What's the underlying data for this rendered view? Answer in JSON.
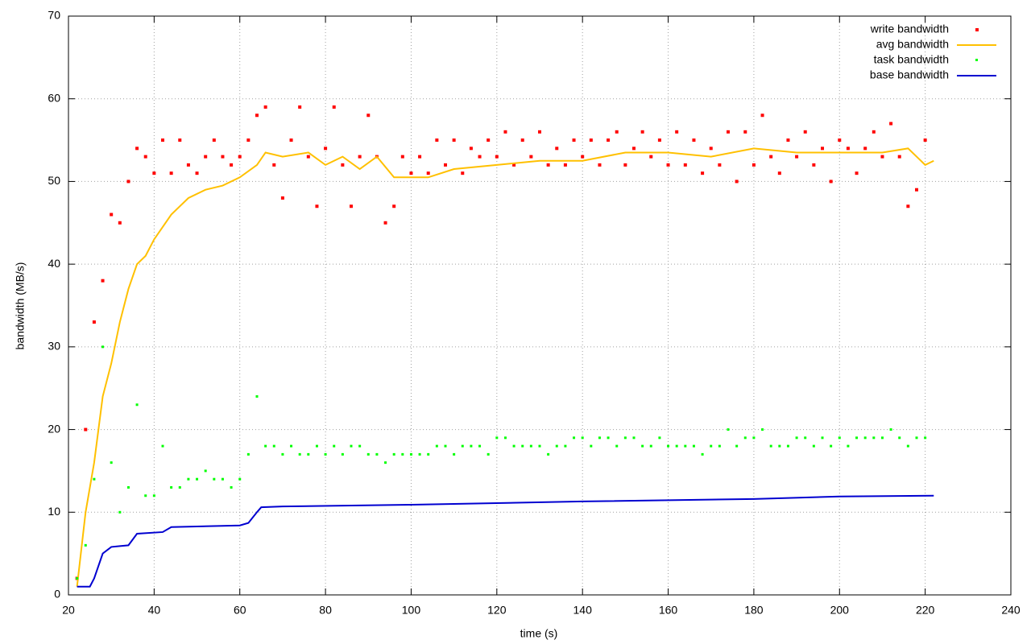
{
  "chart_data": {
    "type": "scatter-line",
    "xlabel": "time (s)",
    "ylabel": "bandwidth (MB/s)",
    "xlim": [
      20,
      240
    ],
    "ylim": [
      0,
      70
    ],
    "xticks": [
      20,
      40,
      60,
      80,
      100,
      120,
      140,
      160,
      180,
      200,
      220,
      240
    ],
    "yticks": [
      0,
      10,
      20,
      30,
      40,
      50,
      60,
      70
    ],
    "grid": true,
    "legend": "top-right",
    "series": [
      {
        "name": "write bandwidth",
        "color": "#ff0000",
        "style": "points",
        "x": [
          22,
          24,
          26,
          28,
          30,
          32,
          34,
          36,
          38,
          40,
          42,
          44,
          46,
          48,
          50,
          52,
          54,
          56,
          58,
          60,
          62,
          64,
          66,
          68,
          70,
          72,
          74,
          76,
          78,
          80,
          82,
          84,
          86,
          88,
          90,
          92,
          94,
          96,
          98,
          100,
          102,
          104,
          106,
          108,
          110,
          112,
          114,
          116,
          118,
          120,
          122,
          124,
          126,
          128,
          130,
          132,
          134,
          136,
          138,
          140,
          142,
          144,
          146,
          148,
          150,
          152,
          154,
          156,
          158,
          160,
          162,
          164,
          166,
          168,
          170,
          172,
          174,
          176,
          178,
          180,
          182,
          184,
          186,
          188,
          190,
          192,
          194,
          196,
          198,
          200,
          202,
          204,
          206,
          208,
          210,
          212,
          214,
          216,
          218,
          220
        ],
        "values": [
          2,
          20,
          33,
          38,
          46,
          45,
          50,
          54,
          53,
          51,
          55,
          51,
          55,
          52,
          51,
          53,
          55,
          53,
          52,
          53,
          55,
          58,
          59,
          52,
          48,
          55,
          59,
          53,
          47,
          54,
          59,
          52,
          47,
          53,
          58,
          53,
          45,
          47,
          53,
          51,
          53,
          51,
          55,
          52,
          55,
          51,
          54,
          53,
          55,
          53,
          56,
          52,
          55,
          53,
          56,
          52,
          54,
          52,
          55,
          53,
          55,
          52,
          55,
          56,
          52,
          54,
          56,
          53,
          55,
          52,
          56,
          52,
          55,
          51,
          54,
          52,
          56,
          50,
          56,
          52,
          58,
          53,
          51,
          55,
          53,
          56,
          52,
          54,
          50,
          55,
          54,
          51,
          54,
          56,
          53,
          57,
          53,
          47,
          49,
          55
        ]
      },
      {
        "name": "avg bandwidth",
        "color": "#ffc000",
        "style": "lines",
        "x": [
          22,
          24,
          26,
          28,
          30,
          32,
          34,
          36,
          38,
          40,
          44,
          48,
          52,
          56,
          60,
          64,
          66,
          70,
          76,
          80,
          84,
          88,
          92,
          96,
          100,
          104,
          110,
          120,
          130,
          140,
          150,
          160,
          170,
          180,
          190,
          200,
          210,
          216,
          220,
          222
        ],
        "values": [
          1,
          10,
          16,
          24,
          28,
          33,
          37,
          40,
          41,
          43,
          46,
          48,
          49,
          49.5,
          50.5,
          52,
          53.5,
          53,
          53.5,
          52,
          53,
          51.5,
          53,
          50.5,
          50.5,
          50.5,
          51.5,
          52,
          52.5,
          52.5,
          53.5,
          53.5,
          53,
          54,
          53.5,
          53.5,
          53.5,
          54,
          52,
          52.5
        ]
      },
      {
        "name": "task bandwidth",
        "color": "#00ff00",
        "style": "points",
        "x": [
          22,
          24,
          26,
          28,
          30,
          32,
          34,
          36,
          38,
          40,
          42,
          44,
          46,
          48,
          50,
          52,
          54,
          56,
          58,
          60,
          62,
          64,
          66,
          68,
          70,
          72,
          74,
          76,
          78,
          80,
          82,
          84,
          86,
          88,
          90,
          92,
          94,
          96,
          98,
          100,
          102,
          104,
          106,
          108,
          110,
          112,
          114,
          116,
          118,
          120,
          122,
          124,
          126,
          128,
          130,
          132,
          134,
          136,
          138,
          140,
          142,
          144,
          146,
          148,
          150,
          152,
          154,
          156,
          158,
          160,
          162,
          164,
          166,
          168,
          170,
          172,
          174,
          176,
          178,
          180,
          182,
          184,
          186,
          188,
          190,
          192,
          194,
          196,
          198,
          200,
          202,
          204,
          206,
          208,
          210,
          212,
          214,
          216,
          218,
          220
        ],
        "values": [
          2,
          6,
          14,
          30,
          16,
          10,
          13,
          23,
          12,
          12,
          18,
          13,
          13,
          14,
          14,
          15,
          14,
          14,
          13,
          14,
          17,
          24,
          18,
          18,
          17,
          18,
          17,
          17,
          18,
          17,
          18,
          17,
          18,
          18,
          17,
          17,
          16,
          17,
          17,
          17,
          17,
          17,
          18,
          18,
          17,
          18,
          18,
          18,
          17,
          19,
          19,
          18,
          18,
          18,
          18,
          17,
          18,
          18,
          19,
          19,
          18,
          19,
          19,
          18,
          19,
          19,
          18,
          18,
          19,
          18,
          18,
          18,
          18,
          17,
          18,
          18,
          20,
          18,
          19,
          19,
          20,
          18,
          18,
          18,
          19,
          19,
          18,
          19,
          18,
          19,
          18,
          19,
          19,
          19,
          19,
          20,
          19,
          18,
          19,
          19
        ]
      },
      {
        "name": "base bandwidth",
        "color": "#0000d0",
        "style": "lines",
        "x": [
          22,
          25,
          26,
          28,
          30,
          32,
          34,
          36,
          42,
          44,
          60,
          62,
          64,
          65,
          70,
          100,
          140,
          180,
          200,
          222
        ],
        "values": [
          1,
          1,
          2,
          5,
          5.8,
          5.9,
          6,
          7.4,
          7.6,
          8.2,
          8.4,
          8.7,
          10,
          10.6,
          10.7,
          10.9,
          11.3,
          11.6,
          11.9,
          12
        ]
      }
    ]
  }
}
